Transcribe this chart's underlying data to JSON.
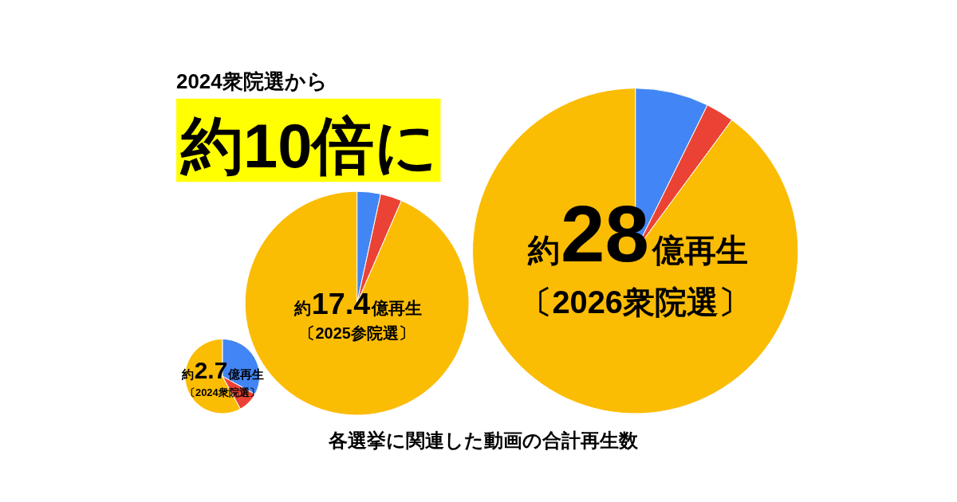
{
  "chart_data": [
    {
      "type": "other",
      "subtitle": "2024衆院選から",
      "title": "約10倍に"
    },
    {
      "type": "pie",
      "categories": [
        null,
        null,
        null
      ],
      "values": [
        33,
        9,
        58
      ],
      "colors": [
        "#4285f4",
        "#ea4335",
        "#fbbc04"
      ],
      "annotations": [
        "約2.7億再生",
        "〔2024衆院選〕"
      ]
    },
    {
      "type": "pie",
      "categories": [
        null,
        null,
        null
      ],
      "values": [
        3.4,
        3.1,
        93.5
      ],
      "colors": [
        "#4285f4",
        "#ea4335",
        "#fbbc04"
      ],
      "annotations": [
        "約17.4億再生",
        "〔2025参院選〕"
      ]
    },
    {
      "type": "pie",
      "categories": [
        null,
        null,
        null
      ],
      "values": [
        7.3,
        2.8,
        89.9
      ],
      "colors": [
        "#4285f4",
        "#ea4335",
        "#fbbc04"
      ],
      "annotations": [
        "約28億再生",
        "〔2026衆院選〕"
      ]
    },
    {
      "type": "other",
      "annotations": [
        "各選挙に関連した動画の合計再生数"
      ]
    }
  ]
}
